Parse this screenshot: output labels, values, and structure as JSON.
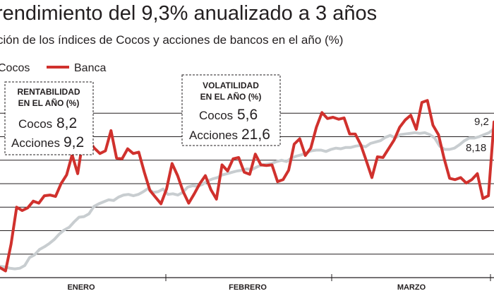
{
  "chart_data": {
    "type": "line",
    "title": "rendimiento del 9,3% anualizado a 3 años",
    "subtitle": "ción de los índices de Cocos y acciones de bancos en el año (%)",
    "xlabel": "",
    "ylabel": "",
    "grid": true,
    "ylim": [
      -14,
      14
    ],
    "x_ticks": [
      "ENERO",
      "FEBRERO",
      "MARZO"
    ],
    "legend": [
      "Cocos",
      "Banca"
    ],
    "series": [
      {
        "name": "Cocos",
        "color": "#c8cdd0",
        "values": [
          -12.3,
          -12.4,
          -12.6,
          -12.7,
          -12.6,
          -12.2,
          -11.0,
          -10.6,
          -9.8,
          -9.4,
          -8.9,
          -8.3,
          -7.5,
          -6.9,
          -6.5,
          -5.7,
          -5.0,
          -4.9,
          -4.5,
          -3.4,
          -3.0,
          -2.7,
          -2.4,
          -2.5,
          -2.0,
          -1.7,
          -1.6,
          -1.8,
          -1.6,
          -1.2,
          -0.7,
          -1.3,
          -1.2,
          -0.8,
          -1.6,
          -1.5,
          -1.7,
          -1.3,
          -0.5,
          -0.3,
          -0.4,
          -0.1,
          0.4,
          0.7,
          0.9,
          1.3,
          1.5,
          1.7,
          1.9,
          2.0,
          2.2,
          2.1,
          2.5,
          2.8,
          2.9,
          3.0,
          3.3,
          3.5,
          3.3,
          3.8,
          4.1,
          4.3,
          4.6,
          4.9,
          5.0,
          5.0,
          4.8,
          5.1,
          5.3,
          5.2,
          5.4,
          5.4,
          5.6,
          5.7,
          5.5,
          6.0,
          6.2,
          6.4,
          6.9,
          7.2,
          6.8,
          7.3,
          7.4,
          7.5,
          7.6,
          7.5,
          7.6,
          7.3,
          6.8,
          5.6,
          5.1,
          5.1,
          5.3,
          5.8,
          6.4,
          6.8,
          6.8,
          7.0,
          7.3,
          7.6,
          8.18
        ]
      },
      {
        "name": "Banca",
        "color": "#d0312d",
        "values": [
          -12.5,
          -13.0,
          -9.0,
          -3.5,
          -4.0,
          -3.6,
          -2.6,
          -2.9,
          -1.8,
          -1.7,
          -1.9,
          0.0,
          1.3,
          4.3,
          1.5,
          6.8,
          6.4,
          5.3,
          4.5,
          4.9,
          7.9,
          3.8,
          3.7,
          5.2,
          4.5,
          4.7,
          1.7,
          -1.0,
          -2.0,
          -3.0,
          -0.8,
          3.0,
          1.2,
          -1.2,
          -2.9,
          -1.5,
          0.0,
          1.2,
          -0.9,
          -2.3,
          2.8,
          1.9,
          3.7,
          3.9,
          1.7,
          1.4,
          4.4,
          2.8,
          2.7,
          2.8,
          0.3,
          0.6,
          2.0,
          5.9,
          6.7,
          4.2,
          5.3,
          8.4,
          10.6,
          9.7,
          9.9,
          9.6,
          9.8,
          7.4,
          7.4,
          5.8,
          3.4,
          0.9,
          4.0,
          3.9,
          5.2,
          6.5,
          8.4,
          9.5,
          10.2,
          8.1,
          12.1,
          12.4,
          8.7,
          7.3,
          3.8,
          0.8,
          0.6,
          0.9,
          0.1,
          0.6,
          1.5,
          -2.2,
          -1.8,
          9.2
        ]
      }
    ],
    "end_labels": {
      "cocos": "8,18",
      "banca": "9,2"
    },
    "boxes": [
      {
        "title_line1": "RENTABILIDAD",
        "title_line2": "EN EL AÑO (%)",
        "row1_label": "Cocos",
        "row1_value": "8,2",
        "row2_label": "Acciones",
        "row2_value": "9,2"
      },
      {
        "title_line1": "VOLATILIDAD",
        "title_line2": "EN EL AÑO (%)",
        "row1_label": "Cocos",
        "row1_value": "5,6",
        "row2_label": "Acciones",
        "row2_value": "21,6"
      }
    ]
  }
}
